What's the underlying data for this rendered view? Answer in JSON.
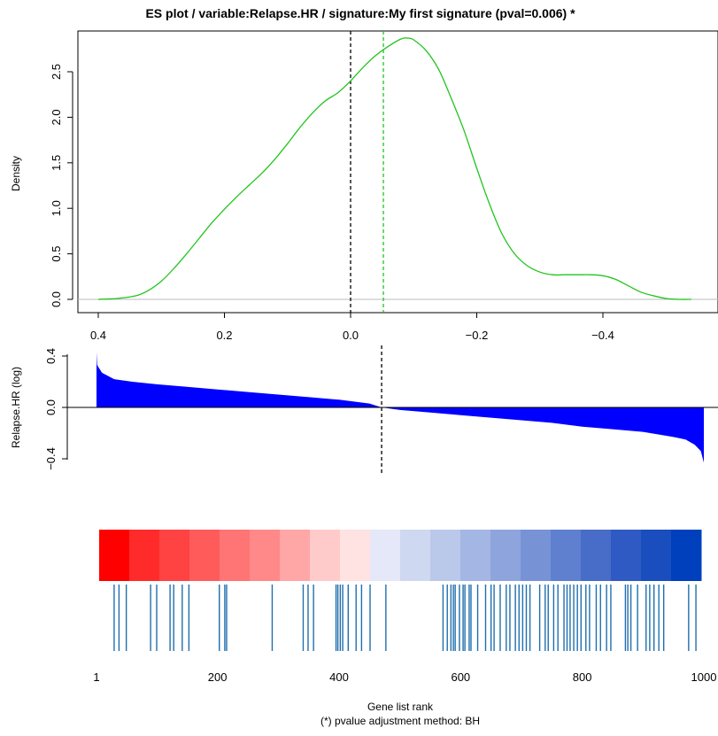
{
  "title": "ES  plot /  variable:Relapse.HR / signature:My first signature (pval=0.006) *",
  "colors": {
    "density": "#22c41f",
    "bars": "#0000ff",
    "ref_line": "#000000"
  },
  "chart_data": [
    {
      "type": "line",
      "name": "density",
      "ylabel": "Density",
      "x_ticks": [
        "0.4",
        "0.2",
        "0.0",
        "−0.2",
        "−0.4"
      ],
      "y_ticks": [
        "0.0",
        "0.5",
        "1.0",
        "1.5",
        "2.0",
        "2.5"
      ],
      "xlim": [
        0.4,
        -0.56
      ],
      "ylim": [
        0,
        2.9
      ],
      "x_reversed": true,
      "vline_zero": 0.0,
      "vline_mean": -0.052,
      "x": [
        0.4,
        0.37,
        0.34,
        0.32,
        0.3,
        0.28,
        0.26,
        0.24,
        0.22,
        0.2,
        0.18,
        0.16,
        0.14,
        0.12,
        0.1,
        0.08,
        0.06,
        0.04,
        0.02,
        0.0,
        -0.02,
        -0.04,
        -0.06,
        -0.08,
        -0.09,
        -0.1,
        -0.12,
        -0.14,
        -0.16,
        -0.18,
        -0.2,
        -0.22,
        -0.24,
        -0.26,
        -0.28,
        -0.3,
        -0.32,
        -0.34,
        -0.36,
        -0.38,
        -0.4,
        -0.42,
        -0.44,
        -0.46,
        -0.48,
        -0.5,
        -0.52,
        -0.54
      ],
      "y": [
        0.0,
        0.01,
        0.04,
        0.1,
        0.2,
        0.34,
        0.5,
        0.67,
        0.84,
        0.99,
        1.13,
        1.26,
        1.39,
        1.54,
        1.71,
        1.89,
        2.05,
        2.18,
        2.27,
        2.4,
        2.55,
        2.68,
        2.78,
        2.86,
        2.87,
        2.85,
        2.73,
        2.52,
        2.2,
        1.85,
        1.44,
        1.05,
        0.72,
        0.5,
        0.37,
        0.3,
        0.27,
        0.27,
        0.27,
        0.27,
        0.26,
        0.22,
        0.15,
        0.08,
        0.04,
        0.01,
        0.0,
        0.0
      ]
    },
    {
      "type": "area",
      "name": "ranked values",
      "ylabel": "Relapse.HR (log)",
      "y_ticks": [
        "−0.4",
        "0.0",
        "0.4"
      ],
      "ylim": [
        -0.48,
        0.48
      ],
      "xlim": [
        1,
        1000
      ],
      "vline_rank": 470,
      "x": [
        1,
        2,
        10,
        30,
        60,
        100,
        150,
        200,
        250,
        300,
        350,
        400,
        450,
        470,
        500,
        550,
        600,
        650,
        700,
        750,
        800,
        850,
        900,
        950,
        970,
        985,
        995,
        1000
      ],
      "y": [
        0.43,
        0.33,
        0.27,
        0.22,
        0.2,
        0.18,
        0.16,
        0.14,
        0.12,
        0.1,
        0.08,
        0.06,
        0.03,
        0.0,
        -0.02,
        -0.04,
        -0.06,
        -0.08,
        -0.1,
        -0.12,
        -0.15,
        -0.17,
        -0.19,
        -0.23,
        -0.25,
        -0.29,
        -0.34,
        -0.43
      ]
    },
    {
      "type": "heatmap",
      "name": "rank color scale",
      "colors": [
        "#ff0000",
        "#ff2b2b",
        "#ff4242",
        "#ff5b5b",
        "#ff7474",
        "#ff8989",
        "#ffa6a6",
        "#ffcaca",
        "#ffe2e2",
        "#e4e8f8",
        "#cfd8f1",
        "#bac8ea",
        "#a4b6e3",
        "#8ea4dd",
        "#7892d6",
        "#5f80cf",
        "#486dc8",
        "#2f5ac3",
        "#1a4ebf",
        "#0040bd"
      ]
    },
    {
      "type": "scatter",
      "name": "signature genes (rug)",
      "xlabel": "Gene list rank",
      "x_ticks": [
        "1",
        "200",
        "400",
        "600",
        "800",
        "1000"
      ],
      "xlim": [
        1,
        1000
      ],
      "x": [
        30,
        38,
        50,
        90,
        100,
        122,
        128,
        142,
        153,
        203,
        212,
        215,
        290,
        341,
        349,
        358,
        395,
        398,
        402,
        406,
        415,
        428,
        437,
        451,
        477,
        571,
        578,
        584,
        588,
        591,
        598,
        604,
        607,
        614,
        617,
        628,
        641,
        650,
        655,
        665,
        675,
        681,
        690,
        696,
        702,
        708,
        714,
        730,
        739,
        744,
        753,
        760,
        770,
        775,
        780,
        786,
        792,
        798,
        806,
        812,
        823,
        830,
        840,
        847,
        871,
        875,
        880,
        891,
        905,
        911,
        918,
        926,
        934,
        975,
        987
      ]
    }
  ],
  "footnote": "(*) pvalue adjustment method: BH"
}
